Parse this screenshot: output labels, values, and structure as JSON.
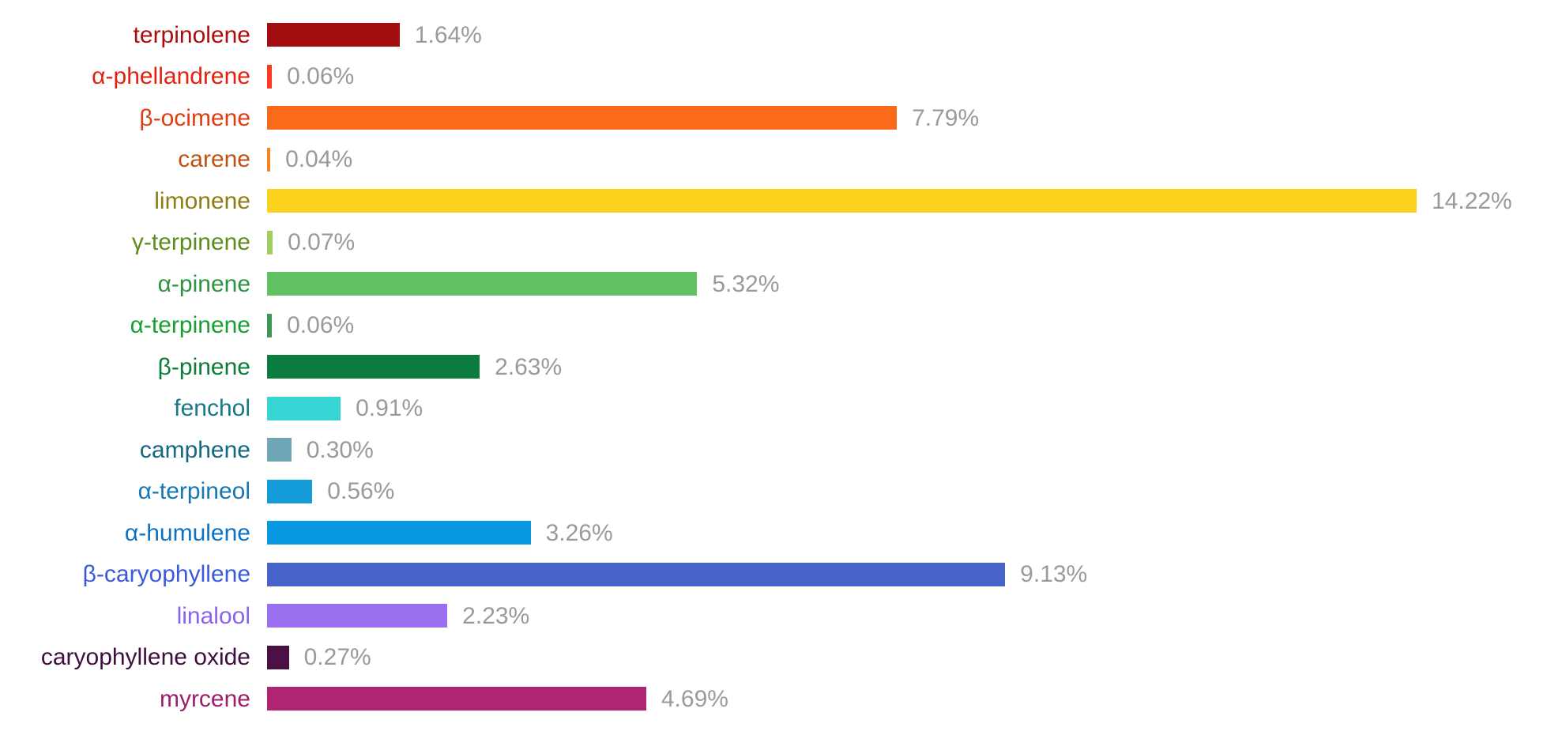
{
  "chart_data": {
    "type": "bar",
    "orientation": "horizontal",
    "title": "",
    "xlabel": "",
    "ylabel": "",
    "xlim": [
      0,
      14.22
    ],
    "grid": false,
    "legend": "none",
    "value_suffix": "%",
    "value_label_color": "#9a9a9a",
    "background_color": "#ffffff",
    "categories": [
      "terpinolene",
      "α-phellandrene",
      "β-ocimene",
      "carene",
      "limonene",
      "γ-terpinene",
      "α-pinene",
      "α-terpinene",
      "β-pinene",
      "fenchol",
      "camphene",
      "α-terpineol",
      "α-humulene",
      "β-caryophyllene",
      "linalool",
      "caryophyllene oxide",
      "myrcene"
    ],
    "values": [
      1.64,
      0.06,
      7.79,
      0.04,
      14.22,
      0.07,
      5.32,
      0.06,
      2.63,
      0.91,
      0.3,
      0.56,
      3.26,
      9.13,
      2.23,
      0.27,
      4.69
    ],
    "rows": [
      {
        "label": "terpinolene",
        "value": 1.64,
        "value_label": "1.64%",
        "bar_color": "#a40d10",
        "label_color": "#ac0e10"
      },
      {
        "label": "α-phellandrene",
        "value": 0.06,
        "value_label": "0.06%",
        "bar_color": "#fb3a21",
        "label_color": "#df2310"
      },
      {
        "label": "β-ocimene",
        "value": 7.79,
        "value_label": "7.79%",
        "bar_color": "#fa6a1b",
        "label_color": "#e03d11"
      },
      {
        "label": "carene",
        "value": 0.04,
        "value_label": "0.04%",
        "bar_color": "#f8821f",
        "label_color": "#bf5412"
      },
      {
        "label": "limonene",
        "value": 14.22,
        "value_label": "14.22%",
        "bar_color": "#fdd21d",
        "label_color": "#8f7d13"
      },
      {
        "label": "γ-terpinene",
        "value": 0.07,
        "value_label": "0.07%",
        "bar_color": "#a2ce5f",
        "label_color": "#5e8c1d"
      },
      {
        "label": "α-pinene",
        "value": 5.32,
        "value_label": "5.32%",
        "bar_color": "#5fc162",
        "label_color": "#2f9340"
      },
      {
        "label": "α-terpinene",
        "value": 0.06,
        "value_label": "0.06%",
        "bar_color": "#3f9659",
        "label_color": "#18a035"
      },
      {
        "label": "β-pinene",
        "value": 2.63,
        "value_label": "2.63%",
        "bar_color": "#0b7c3d",
        "label_color": "#0c7c3c"
      },
      {
        "label": "fenchol",
        "value": 0.91,
        "value_label": "0.91%",
        "bar_color": "#37d5d3",
        "label_color": "#147a88"
      },
      {
        "label": "camphene",
        "value": 0.3,
        "value_label": "0.30%",
        "bar_color": "#70a7b7",
        "label_color": "#14687f"
      },
      {
        "label": "α-terpineol",
        "value": 0.56,
        "value_label": "0.56%",
        "bar_color": "#149cd8",
        "label_color": "#1678b2"
      },
      {
        "label": "α-humulene",
        "value": 3.26,
        "value_label": "3.26%",
        "bar_color": "#0999e2",
        "label_color": "#0e72c2"
      },
      {
        "label": "β-caryophyllene",
        "value": 9.13,
        "value_label": "9.13%",
        "bar_color": "#4763c9",
        "label_color": "#3c59d8"
      },
      {
        "label": "linalool",
        "value": 2.23,
        "value_label": "2.23%",
        "bar_color": "#9b70f0",
        "label_color": "#8a62f0"
      },
      {
        "label": "caryophyllene oxide",
        "value": 0.27,
        "value_label": "0.27%",
        "bar_color": "#4b1144",
        "label_color": "#400e3e"
      },
      {
        "label": "myrcene",
        "value": 4.69,
        "value_label": "4.69%",
        "bar_color": "#b02573",
        "label_color": "#9c1f6e"
      }
    ]
  }
}
